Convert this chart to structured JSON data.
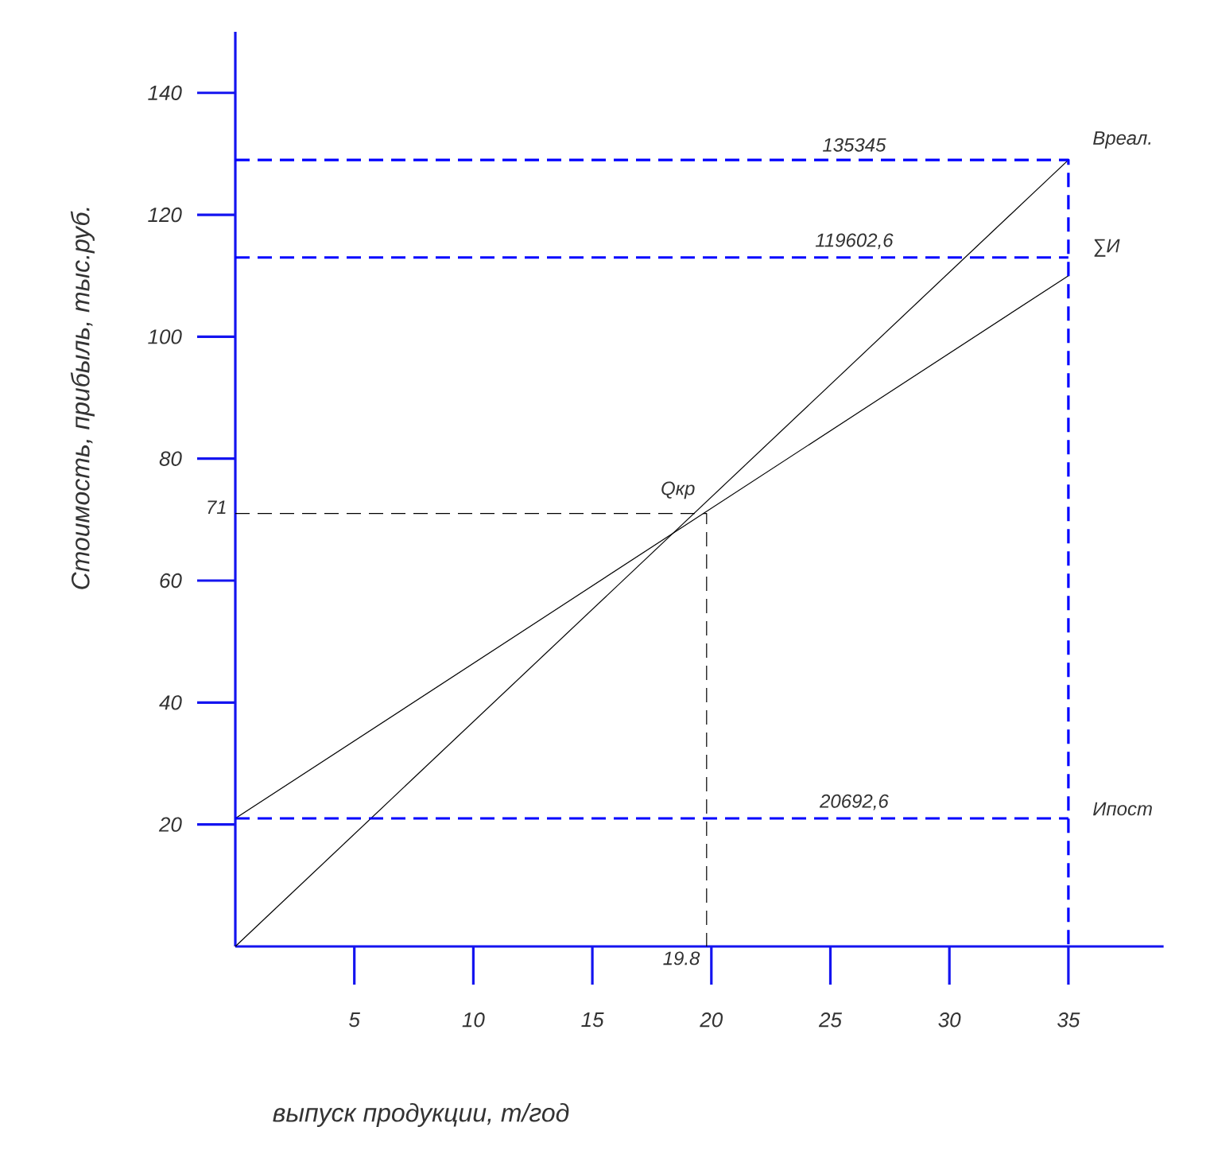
{
  "chart_data": {
    "type": "line",
    "xlabel": "выпуск продукции, т/год",
    "ylabel": "Стоимость, прибыль, тыс.руб.",
    "xlim": [
      0,
      39
    ],
    "ylim": [
      0,
      150
    ],
    "xticks": [
      5,
      10,
      15,
      20,
      25,
      30,
      35
    ],
    "yticks": [
      20,
      40,
      60,
      80,
      100,
      120,
      140
    ],
    "grid": false,
    "marker": "none",
    "series": [
      {
        "color": "#000000",
        "line_style": "solid",
        "x": [
          0,
          35
        ],
        "values": [
          0,
          129
        ]
      },
      {
        "color": "#000000",
        "line_style": "solid",
        "x": [
          0,
          35
        ],
        "values": [
          21,
          110
        ]
      },
      {
        "color": "#0000ff",
        "line_style": "dashed",
        "x": [
          0,
          35,
          35
        ],
        "values": [
          129,
          129,
          0
        ]
      },
      {
        "color": "#0000ff",
        "line_style": "dashed",
        "x": [
          0,
          35
        ],
        "values": [
          113,
          113
        ]
      },
      {
        "color": "#0000ff",
        "line_style": "dashed",
        "x": [
          0,
          35
        ],
        "values": [
          21,
          21
        ]
      },
      {
        "color": "#000000",
        "line_style": "dashed",
        "x": [
          0,
          19.8,
          19.8
        ],
        "values": [
          71,
          71,
          0
        ]
      }
    ],
    "annotations": [
      {
        "text": "135345",
        "x": 26,
        "y": 129
      },
      {
        "text": "119602,6",
        "x": 26,
        "y": 113
      },
      {
        "text": "20692,6",
        "x": 26,
        "y": 21
      },
      {
        "text": "Вреал.",
        "x": 35,
        "y": 129
      },
      {
        "text": "∑И",
        "x": 35,
        "y": 113
      },
      {
        "text": "Ипост",
        "x": 35,
        "y": 21
      },
      {
        "text": "Qкр",
        "x": 19.8,
        "y": 71
      },
      {
        "text": "71",
        "x": 0,
        "y": 71
      },
      {
        "text": "19.8",
        "x": 19.8,
        "y": 0
      }
    ]
  }
}
